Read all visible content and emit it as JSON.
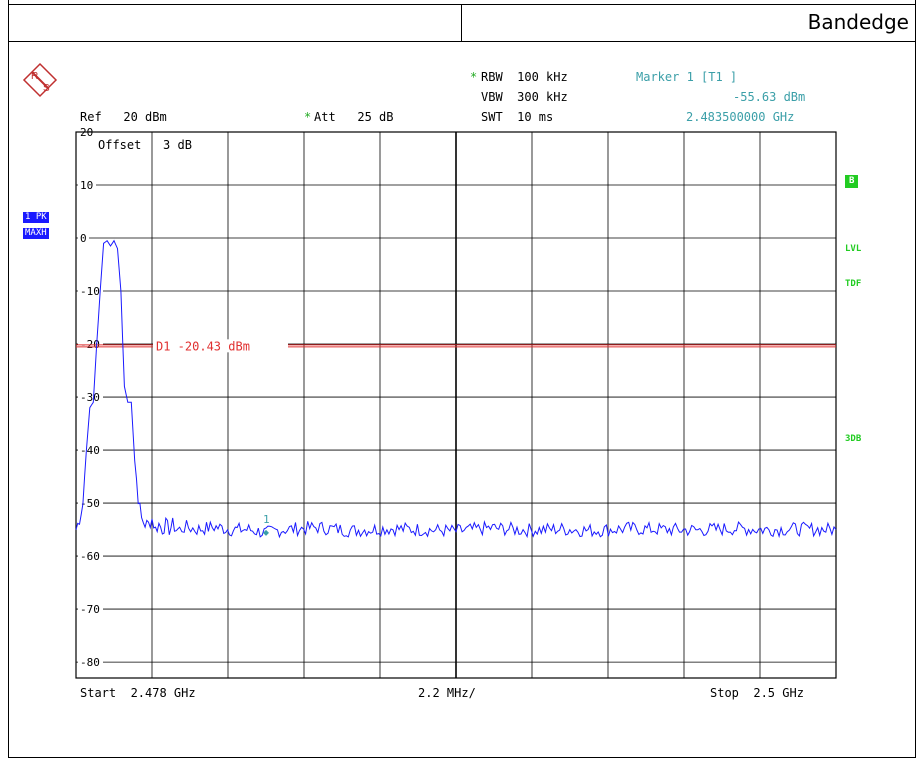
{
  "header": {
    "title": "Bandedge"
  },
  "settings": {
    "rbw_star": "*",
    "rbw": "RBW  100 kHz",
    "vbw": "VBW  300 kHz",
    "swt": "SWT  10 ms",
    "att_star": "*",
    "att": "Att   25 dB",
    "ref": "Ref   20 dBm",
    "offset": "Offset   3 dB"
  },
  "marker": {
    "title": "Marker 1 [T1 ]",
    "level": "-55.63 dBm",
    "freq": "2.483500000 GHz",
    "label": "1"
  },
  "trace_badges": {
    "pk": "1 PK",
    "maxh": "MAXH"
  },
  "side_labels": {
    "b": "B",
    "lvl": "LVL",
    "tdf": "TDF",
    "db3": "3DB"
  },
  "display_line": {
    "label": "D1 -20.43 dBm",
    "value": -20.43,
    "color": "#e03030"
  },
  "footer": {
    "start": "Start  2.478 GHz",
    "span_div": "2.2 MHz/",
    "stop": "Stop  2.5 GHz"
  },
  "colors": {
    "trace": "#1a1aff",
    "grid": "#000000",
    "marker": "#3b9fa8"
  },
  "chart_data": {
    "type": "line",
    "title": "Bandedge",
    "xlabel": "",
    "ylabel": "",
    "xlim": [
      2.478,
      2.5
    ],
    "ylim": [
      -83,
      20
    ],
    "x_unit": "GHz",
    "y_unit": "dBm",
    "y_tick_labels": [
      "20",
      "10",
      "0",
      "-10",
      "-20",
      "-30",
      "-40",
      "-50",
      "-60",
      "-70",
      "-80"
    ],
    "y_ticks": [
      20,
      10,
      0,
      -10,
      -20,
      -30,
      -40,
      -50,
      -60,
      -70,
      -80
    ],
    "grid": true,
    "series": [
      {
        "x": [
          2.478,
          2.4781,
          2.4782,
          2.4783,
          2.4784,
          2.4785,
          2.4786,
          2.4787,
          2.4788,
          2.4789,
          2.479,
          2.4791,
          2.4792,
          2.4793,
          2.4794,
          2.4795,
          2.4796,
          2.4797,
          2.4798,
          2.4799,
          2.48,
          2.4801,
          2.4802,
          2.4803,
          2.4804,
          2.4805,
          2.4806,
          2.4807,
          2.4808,
          2.4809,
          2.481,
          2.4812,
          2.4815,
          2.482,
          2.4825,
          2.483,
          2.4835,
          2.484,
          2.485,
          2.486,
          2.487,
          2.488,
          2.489,
          2.49,
          2.491,
          2.492,
          2.493,
          2.494,
          2.495,
          2.496,
          2.497,
          2.498,
          2.499,
          2.5
        ],
        "y": [
          -55,
          -53,
          -50,
          -40,
          -32,
          -31,
          -20,
          -10,
          -1,
          -0.5,
          -1.5,
          -0.5,
          -2,
          -10,
          -28,
          -31,
          -31,
          -42,
          -49,
          -53,
          -54,
          -54,
          -53,
          -55,
          -54,
          -55,
          -54,
          -55,
          -54,
          -55,
          -55,
          -54.5,
          -55,
          -54.5,
          -55,
          -55,
          -55.63,
          -55,
          -54.6,
          -55.2,
          -54.8,
          -55,
          -55.3,
          -54.7,
          -55.1,
          -54.9,
          -55.2,
          -54.8,
          -55,
          -55.1,
          -54.8,
          -55,
          -54.9,
          -55
        ]
      }
    ],
    "marker": {
      "x": 2.4835,
      "y": -55.63
    }
  }
}
